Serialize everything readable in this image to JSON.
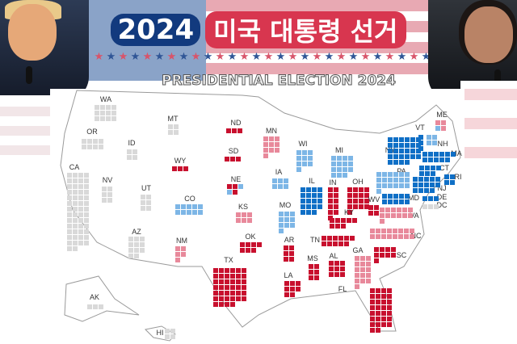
{
  "header": {
    "title_year": "2024",
    "title_korean": "미국 대통령 선거",
    "subtitle": "PRESIDENTIAL ELECTION 2024"
  },
  "colors": {
    "solid_r": "#c8102e",
    "lean_r": "#e8899b",
    "solid_d": "#0f6fc6",
    "lean_d": "#7db6e6",
    "tossup": "#d9d9d9",
    "flag_blue": "#123a7e",
    "title_red": "#d8364f"
  },
  "states": [
    {
      "abbr": "WA",
      "votes": 12,
      "rating": "tossup"
    },
    {
      "abbr": "OR",
      "votes": 8,
      "rating": "tossup"
    },
    {
      "abbr": "CA",
      "votes": 54,
      "rating": "tossup"
    },
    {
      "abbr": "NV",
      "votes": 6,
      "rating": "tossup"
    },
    {
      "abbr": "ID",
      "votes": 4,
      "rating": "tossup"
    },
    {
      "abbr": "MT",
      "votes": 4,
      "rating": "tossup"
    },
    {
      "abbr": "WY",
      "votes": 3,
      "rating": "solid_r"
    },
    {
      "abbr": "UT",
      "votes": 6,
      "rating": "tossup"
    },
    {
      "abbr": "AZ",
      "votes": 11,
      "rating": "tossup"
    },
    {
      "abbr": "CO",
      "votes": 10,
      "rating": "lean_d"
    },
    {
      "abbr": "NM",
      "votes": 5,
      "rating": "lean_r"
    },
    {
      "abbr": "ND",
      "votes": 3,
      "rating": "solid_r"
    },
    {
      "abbr": "SD",
      "votes": 3,
      "rating": "solid_r"
    },
    {
      "abbr": "NE",
      "votes": 5,
      "rating": "solid_r",
      "split": [
        {
          "rating": "solid_r",
          "count": 2
        },
        {
          "rating": "lean_d",
          "count": 1
        },
        {
          "rating": "lean_d",
          "count": 1
        },
        {
          "rating": "solid_r",
          "count": 1
        }
      ]
    },
    {
      "abbr": "KS",
      "votes": 6,
      "rating": "lean_r"
    },
    {
      "abbr": "OK",
      "votes": 7,
      "rating": "solid_r"
    },
    {
      "abbr": "TX",
      "votes": 40,
      "rating": "solid_r"
    },
    {
      "abbr": "MN",
      "votes": 10,
      "rating": "lean_r"
    },
    {
      "abbr": "IA",
      "votes": 6,
      "rating": "lean_d"
    },
    {
      "abbr": "MO",
      "votes": 10,
      "rating": "lean_d"
    },
    {
      "abbr": "AR",
      "votes": 6,
      "rating": "solid_r"
    },
    {
      "abbr": "LA",
      "votes": 8,
      "rating": "solid_r"
    },
    {
      "abbr": "WI",
      "votes": 10,
      "rating": "lean_d"
    },
    {
      "abbr": "IL",
      "votes": 19,
      "rating": "solid_d"
    },
    {
      "abbr": "MI",
      "votes": 15,
      "rating": "lean_d"
    },
    {
      "abbr": "IN",
      "votes": 11,
      "rating": "solid_r"
    },
    {
      "abbr": "OH",
      "votes": 17,
      "rating": "solid_r"
    },
    {
      "abbr": "KY",
      "votes": 8,
      "rating": "solid_r"
    },
    {
      "abbr": "TN",
      "votes": 11,
      "rating": "solid_r"
    },
    {
      "abbr": "MS",
      "votes": 6,
      "rating": "solid_r"
    },
    {
      "abbr": "AL",
      "votes": 9,
      "rating": "solid_r"
    },
    {
      "abbr": "GA",
      "votes": 16,
      "rating": "lean_r"
    },
    {
      "abbr": "FL",
      "votes": 30,
      "rating": "solid_r"
    },
    {
      "abbr": "SC",
      "votes": 9,
      "rating": "solid_r"
    },
    {
      "abbr": "NC",
      "votes": 16,
      "rating": "lean_r"
    },
    {
      "abbr": "VA",
      "votes": 13,
      "rating": "lean_r"
    },
    {
      "abbr": "WV",
      "votes": 4,
      "rating": "solid_r"
    },
    {
      "abbr": "PA",
      "votes": 19,
      "rating": "lean_d"
    },
    {
      "abbr": "NY",
      "votes": 28,
      "rating": "solid_d"
    },
    {
      "abbr": "VT",
      "votes": 3,
      "rating": "solid_d"
    },
    {
      "abbr": "NH",
      "votes": 4,
      "rating": "lean_d"
    },
    {
      "abbr": "ME",
      "votes": 4,
      "rating": "lean_r",
      "split": [
        {
          "rating": "lean_r",
          "count": 2
        },
        {
          "rating": "lean_d",
          "count": 1
        },
        {
          "rating": "lean_r",
          "count": 1
        }
      ]
    },
    {
      "abbr": "MA",
      "votes": 11,
      "rating": "solid_d"
    },
    {
      "abbr": "RI",
      "votes": 4,
      "rating": "solid_d"
    },
    {
      "abbr": "CT",
      "votes": 7,
      "rating": "solid_d"
    },
    {
      "abbr": "NJ",
      "votes": 14,
      "rating": "solid_d"
    },
    {
      "abbr": "DE",
      "votes": 3,
      "rating": "solid_d"
    },
    {
      "abbr": "MD",
      "votes": 10,
      "rating": "solid_d"
    },
    {
      "abbr": "DC",
      "votes": 3,
      "rating": "tossup"
    },
    {
      "abbr": "AK",
      "votes": 3,
      "rating": "tossup"
    },
    {
      "abbr": "HI",
      "votes": 4,
      "rating": "tossup"
    }
  ]
}
